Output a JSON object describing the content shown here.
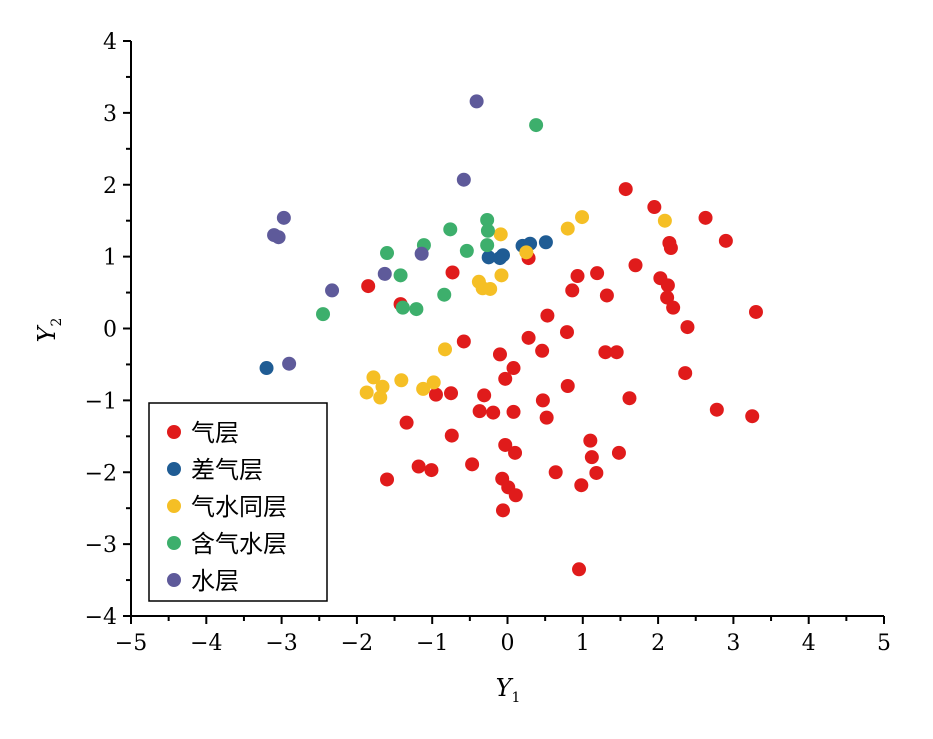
{
  "chart_data": {
    "type": "scatter",
    "xlabel": "Y",
    "xlabel_sub": "1",
    "ylabel": "Y",
    "ylabel_sub": "2",
    "xlim": [
      -5,
      5
    ],
    "ylim": [
      -4,
      4
    ],
    "x_ticks": [
      -5,
      -4,
      -3,
      -2,
      -1,
      0,
      1,
      2,
      3,
      4,
      5
    ],
    "y_ticks": [
      -4,
      -3,
      -2,
      -1,
      0,
      1,
      2,
      3,
      4
    ],
    "x_tick_labels": [
      "−5",
      "−4",
      "−3",
      "−2",
      "−1",
      "0",
      "1",
      "2",
      "3",
      "4",
      "5"
    ],
    "y_tick_labels": [
      "−4",
      "−3",
      "−2",
      "−1",
      "0",
      "1",
      "2",
      "3",
      "4"
    ],
    "grid": false,
    "legend_position": "bottom-left",
    "series": [
      {
        "name": "气层",
        "color": "#e01b1b",
        "points": [
          [
            1.57,
            1.94
          ],
          [
            1.95,
            1.69
          ],
          [
            2.63,
            1.54
          ],
          [
            2.9,
            1.22
          ],
          [
            2.15,
            1.19
          ],
          [
            2.17,
            1.12
          ],
          [
            1.7,
            0.88
          ],
          [
            2.03,
            0.7
          ],
          [
            2.13,
            0.6
          ],
          [
            2.12,
            0.43
          ],
          [
            2.2,
            0.29
          ],
          [
            2.39,
            0.02
          ],
          [
            3.3,
            0.23
          ],
          [
            1.32,
            0.46
          ],
          [
            1.19,
            0.77
          ],
          [
            0.93,
            0.73
          ],
          [
            0.86,
            0.53
          ],
          [
            0.53,
            0.18
          ],
          [
            0.79,
            -0.05
          ],
          [
            0.28,
            -0.13
          ],
          [
            0.46,
            -0.31
          ],
          [
            -0.1,
            -0.36
          ],
          [
            1.3,
            -0.33
          ],
          [
            1.45,
            -0.33
          ],
          [
            2.36,
            -0.62
          ],
          [
            -0.58,
            -0.18
          ],
          [
            0.08,
            -0.55
          ],
          [
            -0.03,
            -0.7
          ],
          [
            0.8,
            -0.8
          ],
          [
            -0.31,
            -0.93
          ],
          [
            -0.75,
            -0.9
          ],
          [
            -0.95,
            -0.92
          ],
          [
            0.47,
            -1.0
          ],
          [
            1.62,
            -0.97
          ],
          [
            2.78,
            -1.13
          ],
          [
            3.25,
            -1.22
          ],
          [
            -0.37,
            -1.15
          ],
          [
            -0.19,
            -1.17
          ],
          [
            0.08,
            -1.16
          ],
          [
            0.52,
            -1.24
          ],
          [
            -1.34,
            -1.31
          ],
          [
            -0.74,
            -1.49
          ],
          [
            1.1,
            -1.56
          ],
          [
            -0.03,
            -1.62
          ],
          [
            0.1,
            -1.73
          ],
          [
            1.48,
            -1.73
          ],
          [
            1.12,
            -1.79
          ],
          [
            -1.18,
            -1.92
          ],
          [
            -1.01,
            -1.97
          ],
          [
            -0.47,
            -1.89
          ],
          [
            0.64,
            -2.0
          ],
          [
            1.18,
            -2.01
          ],
          [
            -1.6,
            -2.1
          ],
          [
            -0.07,
            -2.09
          ],
          [
            0.01,
            -2.21
          ],
          [
            0.11,
            -2.32
          ],
          [
            0.98,
            -2.18
          ],
          [
            -0.06,
            -2.53
          ],
          [
            0.95,
            -3.35
          ],
          [
            -1.85,
            0.59
          ],
          [
            -1.42,
            0.34
          ],
          [
            -0.73,
            0.78
          ],
          [
            0.28,
            0.98
          ]
        ]
      },
      {
        "name": "差气层",
        "color": "#1f5c94",
        "points": [
          [
            -0.25,
            0.99
          ],
          [
            -0.1,
            0.98
          ],
          [
            -0.06,
            1.02
          ],
          [
            0.2,
            1.15
          ],
          [
            0.3,
            1.18
          ],
          [
            0.51,
            1.2
          ],
          [
            -3.2,
            -0.55
          ]
        ]
      },
      {
        "name": "气水同层",
        "color": "#f5bf25",
        "points": [
          [
            0.99,
            1.55
          ],
          [
            2.09,
            1.5
          ],
          [
            0.8,
            1.39
          ],
          [
            -0.09,
            1.31
          ],
          [
            0.25,
            1.06
          ],
          [
            -0.08,
            0.74
          ],
          [
            -0.38,
            0.65
          ],
          [
            -0.33,
            0.56
          ],
          [
            -0.23,
            0.55
          ],
          [
            -0.83,
            -0.29
          ],
          [
            -1.78,
            -0.68
          ],
          [
            -1.66,
            -0.81
          ],
          [
            -1.87,
            -0.89
          ],
          [
            -1.69,
            -0.96
          ],
          [
            -1.41,
            -0.72
          ],
          [
            -0.98,
            -0.75
          ],
          [
            -1.12,
            -0.84
          ]
        ]
      },
      {
        "name": "含气水层",
        "color": "#3daf6c",
        "points": [
          [
            0.38,
            2.83
          ],
          [
            -0.27,
            1.51
          ],
          [
            -0.26,
            1.36
          ],
          [
            -0.76,
            1.38
          ],
          [
            -1.11,
            1.16
          ],
          [
            -0.27,
            1.16
          ],
          [
            -0.54,
            1.08
          ],
          [
            -1.6,
            1.05
          ],
          [
            -1.42,
            0.74
          ],
          [
            -0.84,
            0.47
          ],
          [
            -1.39,
            0.29
          ],
          [
            -1.21,
            0.27
          ],
          [
            -2.45,
            0.2
          ]
        ]
      },
      {
        "name": "水层",
        "color": "#5e5a9a",
        "points": [
          [
            -0.41,
            3.16
          ],
          [
            -0.58,
            2.07
          ],
          [
            -2.97,
            1.54
          ],
          [
            -3.1,
            1.3
          ],
          [
            -3.04,
            1.27
          ],
          [
            -1.14,
            1.04
          ],
          [
            -1.63,
            0.76
          ],
          [
            -2.33,
            0.53
          ],
          [
            -2.9,
            -0.49
          ]
        ]
      }
    ]
  }
}
